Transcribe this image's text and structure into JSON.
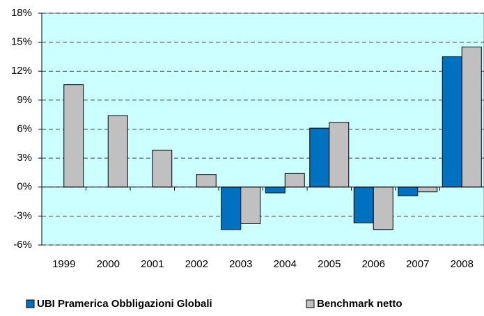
{
  "chart_data": {
    "type": "bar",
    "categories": [
      "1999",
      "2000",
      "2001",
      "2002",
      "2003",
      "2004",
      "2005",
      "2006",
      "2007",
      "2008"
    ],
    "series": [
      {
        "name": "UBI Pramerica Obbligazioni Globali",
        "color": "#0070C0",
        "values": [
          null,
          null,
          null,
          null,
          -4.4,
          -0.6,
          6.1,
          -3.7,
          -0.9,
          13.5
        ]
      },
      {
        "name": "Benchmark netto",
        "color": "#C0C0C0",
        "values": [
          10.6,
          7.4,
          3.8,
          1.3,
          -3.8,
          1.4,
          6.7,
          -4.4,
          -0.5,
          14.5
        ]
      }
    ],
    "ylim": [
      -6,
      18
    ],
    "yticks": [
      {
        "value": -6,
        "label": "-6%"
      },
      {
        "value": -3,
        "label": "-3%"
      },
      {
        "value": 0,
        "label": "0%"
      },
      {
        "value": 3,
        "label": "3%"
      },
      {
        "value": 6,
        "label": "6%"
      },
      {
        "value": 9,
        "label": "9%"
      },
      {
        "value": 12,
        "label": "12%"
      },
      {
        "value": 15,
        "label": "15%"
      },
      {
        "value": 18,
        "label": "18%"
      }
    ],
    "grid": true,
    "background": "#CCFFFF",
    "legend": "bottom"
  }
}
